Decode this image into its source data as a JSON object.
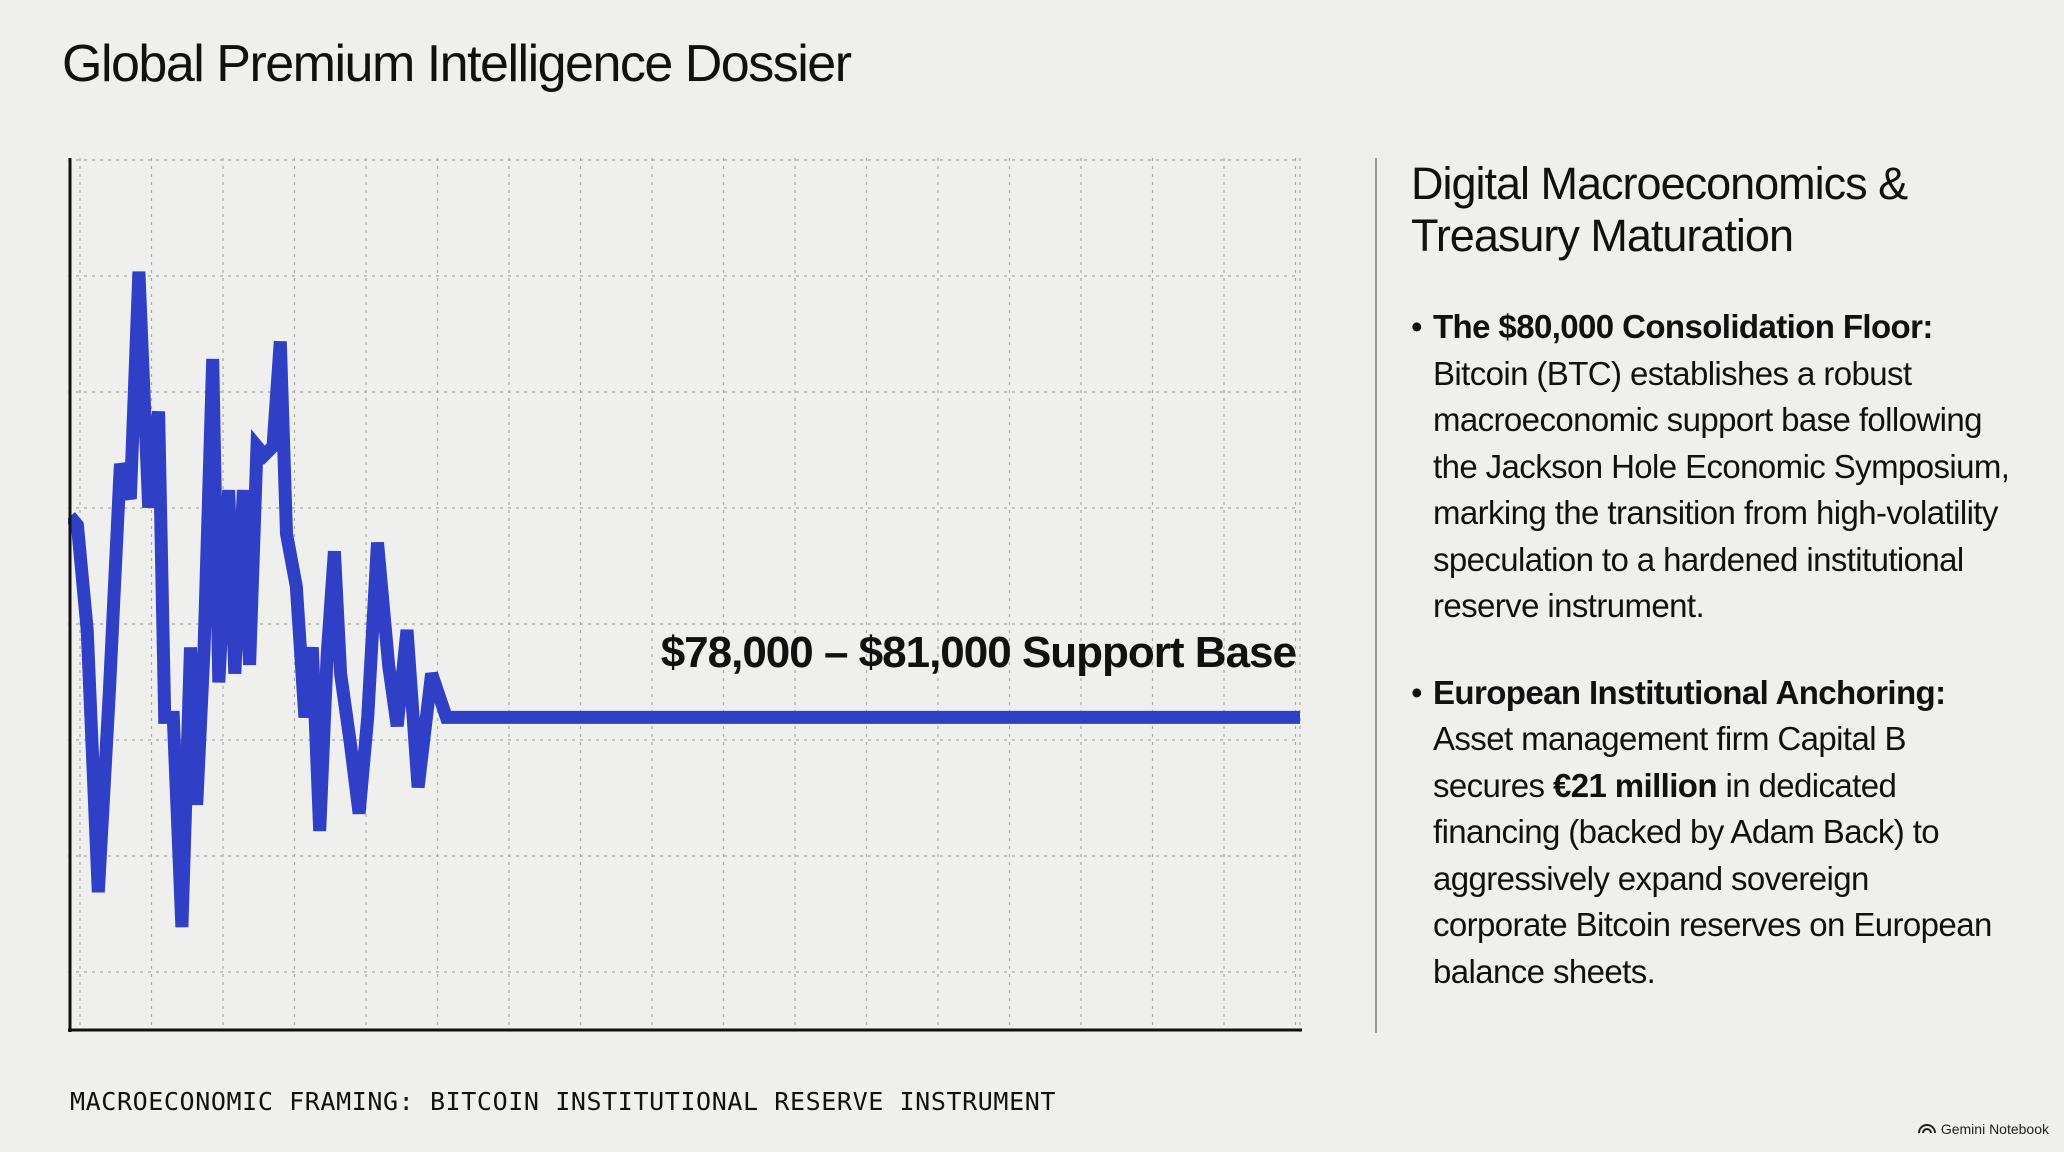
{
  "page": {
    "title": "Global Premium Intelligence Dossier",
    "caption": "MACROECONOMIC FRAMING: BITCOIN INSTITUTIONAL RESERVE INSTRUMENT"
  },
  "colors": {
    "background": "#efefed",
    "line": "#2f3fc6",
    "text": "#111111"
  },
  "chart": {
    "annotation": "$78,000 – $81,000 Support Base"
  },
  "chart_data": {
    "type": "line",
    "title": "",
    "xlabel": "",
    "ylabel": "",
    "grid": true,
    "xlim": [
      0,
      100
    ],
    "ylim": [
      0,
      100
    ],
    "series": [
      {
        "x": [
          0,
          0.6,
          1.4,
          2.3,
          3.2,
          4.1,
          4.9,
          5.6,
          6.4,
          7.2,
          7.7,
          8.4,
          9.1,
          9.8,
          10.3,
          10.9,
          11.6,
          12.1,
          12.9,
          13.4,
          14.1,
          14.6,
          15.2,
          15.8,
          16.5,
          17.1,
          17.6,
          18.4,
          19.1,
          19.7,
          20.3,
          20.9,
          21.5,
          22.0,
          22.8,
          23.5,
          24.2,
          25.0,
          25.9,
          26.6,
          27.4,
          28.3,
          29.4,
          30.6,
          31.8,
          32.9,
          34.0,
          35.2,
          36.7,
          38.1,
          100
        ],
        "y": [
          59,
          58,
          46,
          16,
          39,
          65,
          61,
          87,
          60,
          71,
          36,
          36,
          12,
          44,
          26,
          44,
          77,
          40,
          62,
          41,
          62,
          42,
          67,
          66,
          67,
          79,
          57,
          51,
          36,
          44,
          23,
          43,
          55,
          41,
          33,
          25,
          36,
          56,
          42,
          35,
          46,
          28,
          41,
          36,
          36,
          36,
          36,
          36,
          36,
          36,
          36
        ]
      }
    ]
  },
  "side": {
    "heading_line1": "Digital Macroeconomics &",
    "heading_line2": "Treasury Maturation",
    "bullet_marker": "•",
    "bullet1": {
      "title": "The $80,000 Consolidation Floor:",
      "body": "Bitcoin (BTC) establishes a robust macroeconomic support base following the Jackson Hole Economic Symposium, marking the transition from high-volatility speculation to a hardened institutional reserve instrument."
    },
    "bullet2": {
      "title": "European Institutional Anchoring:",
      "body_pre": "Asset management firm Capital B secures",
      "body_strong": "€21 million",
      "body_post": "in dedicated financing (backed by Adam Back) to aggressively expand sovereign corporate Bitcoin reserves on European balance sheets."
    }
  },
  "branding": {
    "label": "Gemini Notebook",
    "icon": "notebook-logo-icon"
  }
}
